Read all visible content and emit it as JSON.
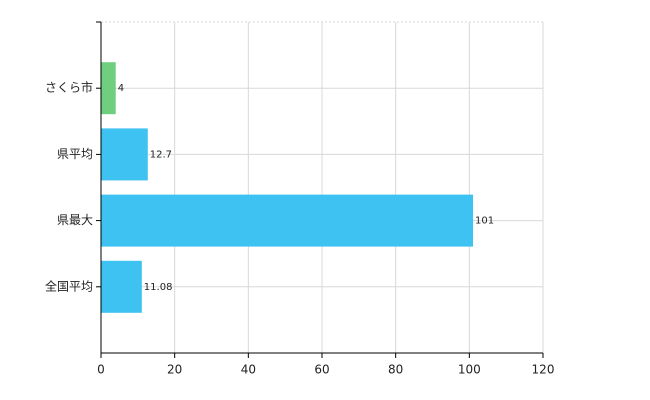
{
  "chart_data": {
    "type": "hbar",
    "categories": [
      "さくら市",
      "県平均",
      "県最大",
      "全国平均"
    ],
    "values": [
      4,
      12.7,
      101,
      11.08
    ],
    "colors": [
      "#6fcf7f",
      "#3ec2f2",
      "#3ec2f2",
      "#3ec2f2"
    ],
    "xlim": [
      0,
      120
    ],
    "xticks": [
      0,
      20,
      40,
      60,
      80,
      100,
      120
    ],
    "grid": true
  }
}
